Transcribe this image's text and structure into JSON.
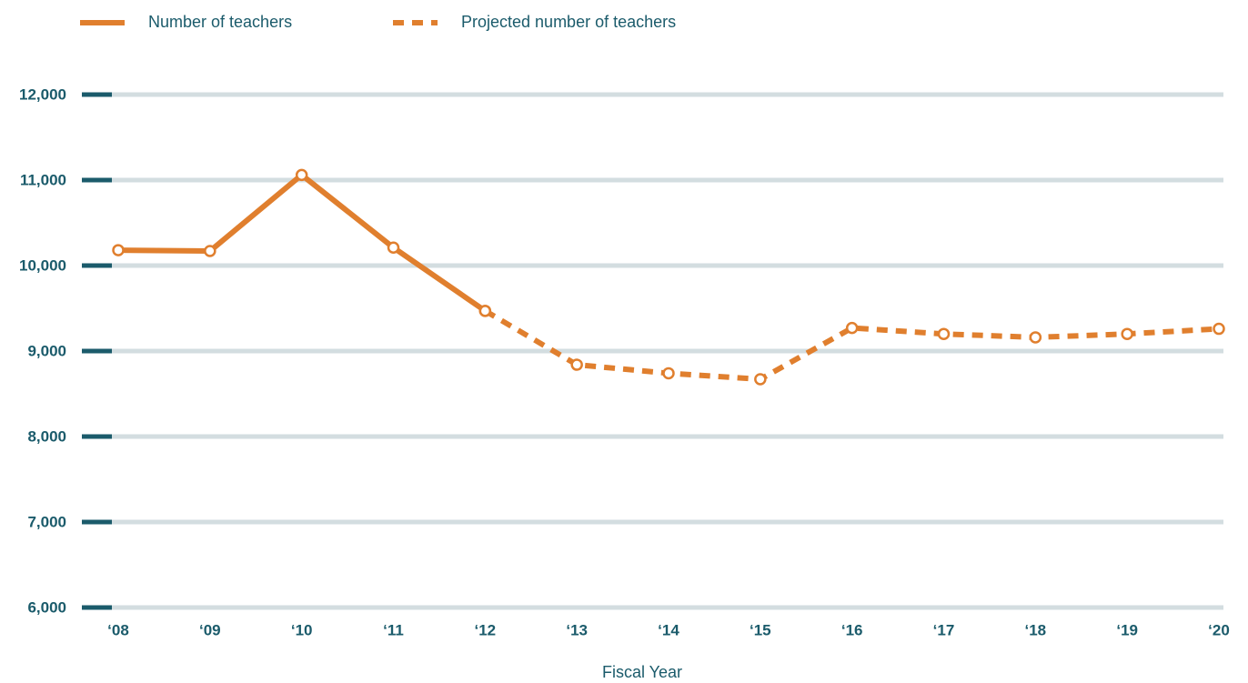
{
  "chart_data": {
    "type": "line",
    "x_label": "Fiscal Year",
    "categories": [
      "‘08",
      "‘09",
      "‘10",
      "‘11",
      "‘12",
      "‘13",
      "‘14",
      "‘15",
      "‘16",
      "‘17",
      "‘18",
      "‘19",
      "‘20"
    ],
    "series": [
      {
        "name": "Number of teachers",
        "color": "#e07f2e",
        "line_style": "solid",
        "values": [
          10180,
          10170,
          11060,
          10210,
          9470,
          null,
          null,
          null,
          null,
          null,
          null,
          null,
          null
        ]
      },
      {
        "name": "Projected number of teachers",
        "color": "#e07f2e",
        "line_style": "dashed",
        "values": [
          null,
          null,
          null,
          null,
          9470,
          8840,
          8740,
          8670,
          9270,
          9200,
          9160,
          9200,
          9260
        ]
      }
    ],
    "ylim": [
      6000,
      12000
    ],
    "yticks": [
      {
        "value": 6000,
        "label": "6,000"
      },
      {
        "value": 7000,
        "label": "7,000"
      },
      {
        "value": 8000,
        "label": "8,000"
      },
      {
        "value": 9000,
        "label": "9,000"
      },
      {
        "value": 10000,
        "label": "10,000"
      },
      {
        "value": 11000,
        "label": "11,000"
      },
      {
        "value": 12000,
        "label": "12,000"
      }
    ],
    "grid": true
  }
}
